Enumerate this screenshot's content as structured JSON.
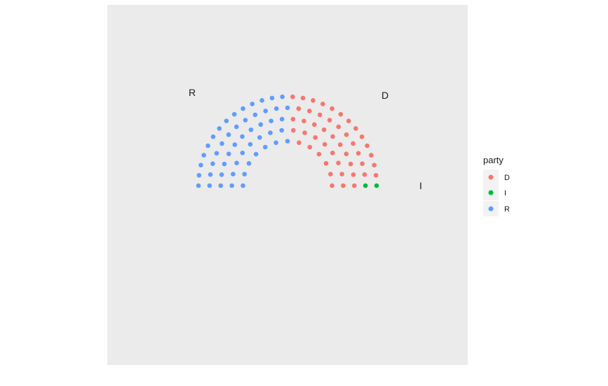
{
  "chart_data": {
    "type": "scatter",
    "subtype": "parliament",
    "title": "",
    "xlabel": "",
    "ylabel": "",
    "grid": false,
    "legend": {
      "title": "party",
      "placement": "right",
      "entries": [
        {
          "label": "D",
          "color": "#F8766D"
        },
        {
          "label": "I",
          "color": "#00BA38"
        },
        {
          "label": "R",
          "color": "#619CFF"
        }
      ]
    },
    "panel_background": "#EBEBEB",
    "rows": 5,
    "seats_per_row": [
      13,
      16,
      20,
      23,
      28
    ],
    "parties": [
      {
        "name": "R",
        "seats": 51,
        "color": "#619CFF"
      },
      {
        "name": "D",
        "seats": 47,
        "color": "#F8766D"
      },
      {
        "name": "I",
        "seats": 2,
        "color": "#00BA38"
      }
    ],
    "party_labels": [
      {
        "text": "R",
        "party": "R"
      },
      {
        "text": "D",
        "party": "D"
      },
      {
        "text": "I",
        "party": "I"
      }
    ],
    "total_seats": 100
  }
}
